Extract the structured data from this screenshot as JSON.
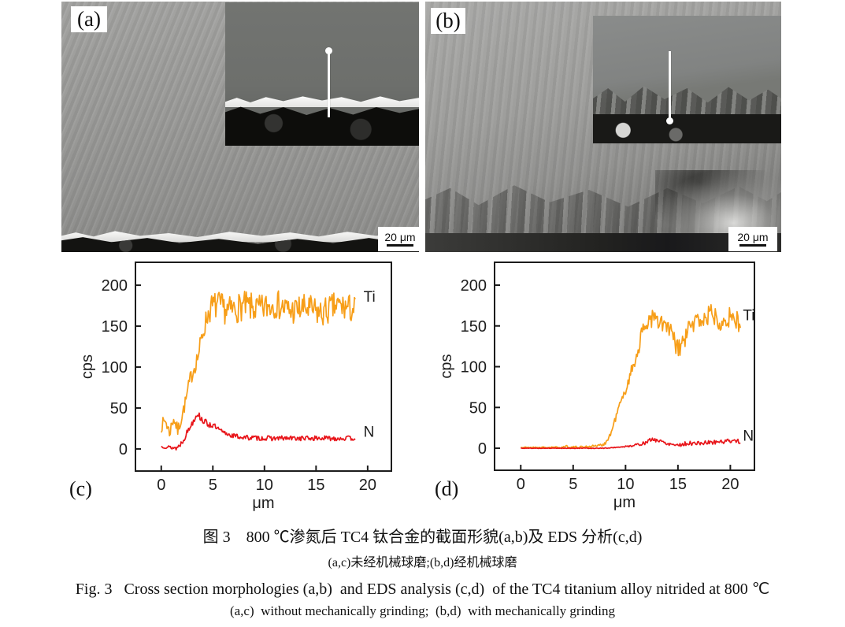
{
  "figure": {
    "caption_zh_line1": "图 3　800 ℃渗氮后 TC4 钛合金的截面形貌(a,b)及 EDS 分析(c,d)",
    "caption_zh_line2": "(a,c)未经机械球磨;(b,d)经机械球磨",
    "caption_en_line1": "Fig. 3   Cross section morphologies (a,b)  and EDS analysis (c,d)  of the TC4 titanium alloy nitrided at 800 ℃",
    "caption_en_line2": "(a,c)  without mechanically grinding;  (b,d)  with mechanically grinding"
  },
  "panels": {
    "a": {
      "label": "(a)",
      "scalebar": "20 μm"
    },
    "b": {
      "label": "(b)",
      "scalebar": "20 μm"
    },
    "c": {
      "label": "(c)"
    },
    "d": {
      "label": "(d)"
    }
  },
  "colors": {
    "ti_line": "#F79E18",
    "n_line": "#E8151A",
    "axis": "#1c1c1c"
  },
  "chart_data": [
    {
      "type": "line",
      "panel": "c",
      "title": "",
      "xlabel": "μm",
      "ylabel": "cps",
      "xlim": [
        -2.5,
        22.3
      ],
      "ylim": [
        -27,
        228
      ],
      "xticks": [
        0,
        5,
        10,
        15,
        20
      ],
      "yticks": [
        0,
        50,
        100,
        150,
        200
      ],
      "grid": false,
      "legend_position": "inline-right",
      "series": [
        {
          "name": "Ti",
          "color": "#F79E18",
          "x_start": 0,
          "x_end": 18.8,
          "step": 0.08,
          "seed": 7,
          "keypoints": [
            [
              0,
              28
            ],
            [
              0.4,
              35
            ],
            [
              0.8,
              20
            ],
            [
              1.2,
              38
            ],
            [
              1.6,
              22
            ],
            [
              2.0,
              40
            ],
            [
              2.4,
              60
            ],
            [
              2.8,
              85
            ],
            [
              3.2,
              100
            ],
            [
              3.6,
              115
            ],
            [
              4.0,
              140
            ],
            [
              4.4,
              160
            ],
            [
              4.8,
              172
            ],
            [
              5.4,
              176
            ],
            [
              6.5,
              168
            ],
            [
              8,
              175
            ],
            [
              9.5,
              170
            ],
            [
              11,
              178
            ],
            [
              12.5,
              168
            ],
            [
              14,
              172
            ],
            [
              15.5,
              165
            ],
            [
              17,
              175
            ],
            [
              18.8,
              170
            ]
          ],
          "noise_amp": [
            [
              0,
              8
            ],
            [
              1.9,
              8
            ],
            [
              3,
              10
            ],
            [
              4.5,
              14
            ],
            [
              5,
              18
            ],
            [
              18.8,
              18
            ]
          ],
          "label": {
            "text": "Ti",
            "x": 19.6,
            "y": 180
          }
        },
        {
          "name": "N",
          "color": "#E8151A",
          "x_start": 0,
          "x_end": 18.8,
          "step": 0.08,
          "seed": 13,
          "keypoints": [
            [
              0,
              3
            ],
            [
              0.8,
              2
            ],
            [
              1.5,
              1
            ],
            [
              2.0,
              8
            ],
            [
              2.5,
              20
            ],
            [
              3.0,
              32
            ],
            [
              3.5,
              44
            ],
            [
              3.8,
              38
            ],
            [
              4.2,
              33
            ],
            [
              4.6,
              30
            ],
            [
              5.0,
              29
            ],
            [
              5.5,
              24
            ],
            [
              6.0,
              20
            ],
            [
              7,
              16
            ],
            [
              8,
              14
            ],
            [
              10,
              13
            ],
            [
              12,
              13
            ],
            [
              14,
              13
            ],
            [
              16,
              13
            ],
            [
              18.8,
              13
            ]
          ],
          "noise_amp": [
            [
              0,
              1.5
            ],
            [
              2.5,
              4
            ],
            [
              4.5,
              4
            ],
            [
              6,
              3
            ],
            [
              18.8,
              3
            ]
          ],
          "label": {
            "text": "N",
            "x": 19.6,
            "y": 15
          }
        }
      ]
    },
    {
      "type": "line",
      "panel": "d",
      "title": "",
      "xlabel": "μm",
      "ylabel": "cps",
      "xlim": [
        -2.5,
        22.3
      ],
      "ylim": [
        -27,
        228
      ],
      "xticks": [
        0,
        5,
        10,
        15,
        20
      ],
      "yticks": [
        0,
        50,
        100,
        150,
        200
      ],
      "grid": false,
      "legend_position": "inline-right",
      "series": [
        {
          "name": "Ti",
          "color": "#F79E18",
          "x_start": 0,
          "x_end": 21.0,
          "step": 0.08,
          "seed": 21,
          "keypoints": [
            [
              0,
              1
            ],
            [
              4,
              1
            ],
            [
              4.3,
              3
            ],
            [
              4.8,
              1
            ],
            [
              6.3,
              2
            ],
            [
              7.2,
              3
            ],
            [
              7.8,
              4
            ],
            [
              8.2,
              8
            ],
            [
              8.6,
              18
            ],
            [
              9.0,
              35
            ],
            [
              9.4,
              52
            ],
            [
              9.8,
              63
            ],
            [
              10.2,
              80
            ],
            [
              10.6,
              96
            ],
            [
              11.0,
              112
            ],
            [
              11.4,
              132
            ],
            [
              11.8,
              148
            ],
            [
              12.2,
              158
            ],
            [
              12.6,
              161
            ],
            [
              13.0,
              154
            ],
            [
              13.6,
              151
            ],
            [
              14.2,
              146
            ],
            [
              14.7,
              128
            ],
            [
              15.1,
              121
            ],
            [
              15.6,
              132
            ],
            [
              16.1,
              148
            ],
            [
              16.6,
              154
            ],
            [
              17.1,
              159
            ],
            [
              17.6,
              157
            ],
            [
              18.1,
              167
            ],
            [
              18.6,
              161
            ],
            [
              19.1,
              157
            ],
            [
              19.6,
              161
            ],
            [
              20.1,
              159
            ],
            [
              20.6,
              157
            ],
            [
              21,
              150
            ]
          ],
          "noise_amp": [
            [
              0,
              0.6
            ],
            [
              7.8,
              1.5
            ],
            [
              8.6,
              3
            ],
            [
              10,
              6
            ],
            [
              11.5,
              11
            ],
            [
              12.5,
              13
            ],
            [
              21,
              13
            ]
          ],
          "label": {
            "text": "Ti",
            "x": 21.2,
            "y": 157
          }
        },
        {
          "name": "N",
          "color": "#E8151A",
          "x_start": 0,
          "x_end": 21.0,
          "step": 0.08,
          "seed": 5,
          "keypoints": [
            [
              0,
              0
            ],
            [
              8,
              0
            ],
            [
              9,
              1
            ],
            [
              10,
              2
            ],
            [
              11,
              4
            ],
            [
              12,
              7
            ],
            [
              12.5,
              11
            ],
            [
              13,
              10
            ],
            [
              13.5,
              8
            ],
            [
              14,
              6
            ],
            [
              14.5,
              5
            ],
            [
              15,
              4
            ],
            [
              16,
              6
            ],
            [
              17,
              6
            ],
            [
              18,
              7
            ],
            [
              19,
              8
            ],
            [
              20,
              9
            ],
            [
              20.5,
              10
            ],
            [
              21,
              7
            ]
          ],
          "noise_amp": [
            [
              0,
              0.3
            ],
            [
              9.5,
              0.5
            ],
            [
              11,
              1.5
            ],
            [
              12,
              2.5
            ],
            [
              21,
              2.5
            ]
          ],
          "label": {
            "text": "N",
            "x": 21.2,
            "y": 9
          }
        }
      ]
    }
  ]
}
